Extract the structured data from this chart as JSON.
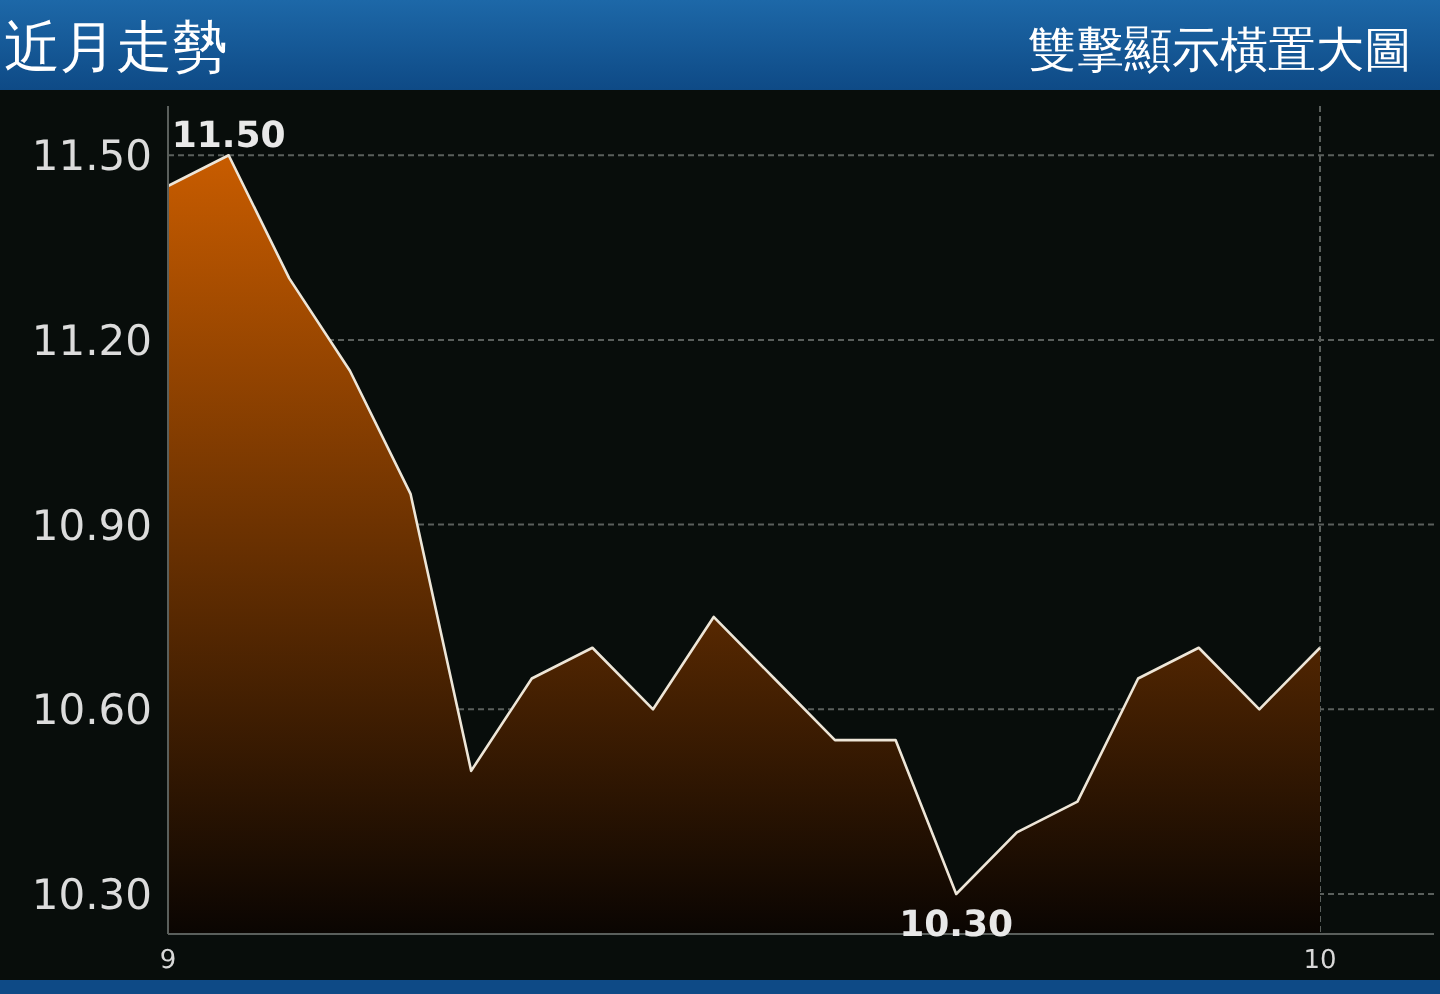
{
  "chart_data": {
    "type": "area",
    "title": "近月走勢",
    "subtitle": "雙擊顯示橫置大圖",
    "categories": [
      "9",
      null,
      null,
      null,
      null,
      null,
      null,
      null,
      null,
      null,
      null,
      null,
      null,
      null,
      null,
      null,
      null,
      null,
      null,
      "10"
    ],
    "values": [
      11.45,
      11.5,
      11.3,
      11.15,
      10.95,
      10.5,
      10.65,
      10.7,
      10.6,
      10.75,
      10.65,
      10.55,
      10.55,
      10.3,
      10.4,
      10.45,
      10.65,
      10.7,
      10.6,
      10.7
    ],
    "color": "#c85c00",
    "ylim": [
      10.235,
      11.58
    ],
    "yticks": [
      {
        "value": 10.3,
        "label": "10.30"
      },
      {
        "value": 10.6,
        "label": "10.60"
      },
      {
        "value": 10.9,
        "label": "10.90"
      },
      {
        "value": 11.2,
        "label": "11.20"
      },
      {
        "value": 11.5,
        "label": "11.50"
      }
    ],
    "grid": true,
    "annotations": [
      {
        "text": "11.50",
        "y": 11.5
      },
      {
        "text": "10.30",
        "y": 10.3
      }
    ]
  }
}
